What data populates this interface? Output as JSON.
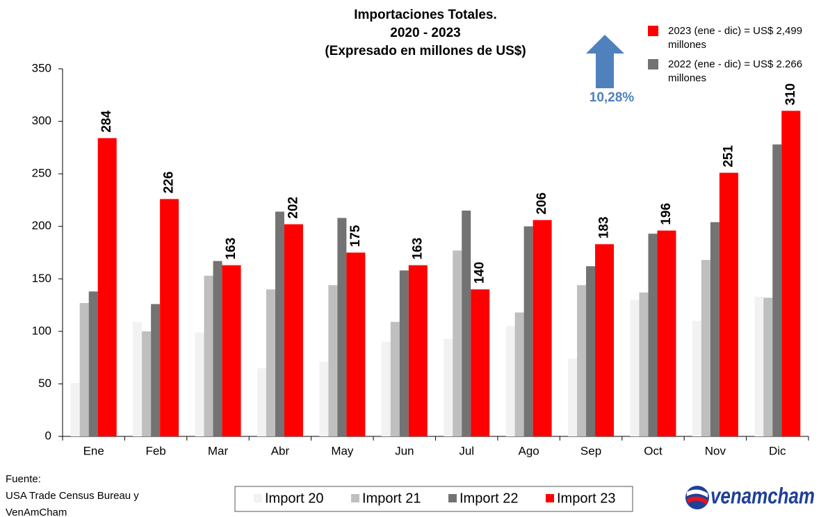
{
  "chart_data": {
    "type": "bar",
    "title": [
      "Importaciones Totales.",
      "2020 - 2023",
      "(Expresado en millones de US$)"
    ],
    "categories": [
      "Ene",
      "Feb",
      "Mar",
      "Abr",
      "May",
      "Jun",
      "Jul",
      "Ago",
      "Sep",
      "Oct",
      "Nov",
      "Dic"
    ],
    "series": [
      {
        "name": "Import 20",
        "color": "#f2f2f2",
        "values": [
          51,
          109,
          99,
          65,
          71,
          90,
          93,
          105,
          74,
          130,
          110,
          133
        ]
      },
      {
        "name": "Import 21",
        "color": "#bfbfbf",
        "values": [
          127,
          100,
          153,
          140,
          144,
          109,
          177,
          118,
          144,
          137,
          168,
          132
        ]
      },
      {
        "name": "Import 22",
        "color": "#737373",
        "values": [
          138,
          126,
          167,
          214,
          208,
          158,
          215,
          200,
          162,
          193,
          204,
          278
        ]
      },
      {
        "name": "Import 23",
        "color": "#ff0000",
        "values": [
          284,
          226,
          163,
          202,
          175,
          163,
          140,
          206,
          183,
          196,
          251,
          310
        ]
      }
    ],
    "labeled_series": 3,
    "ylim": [
      0,
      350
    ],
    "yticks": [
      0,
      50,
      100,
      150,
      200,
      250,
      300,
      350
    ],
    "annotations": {
      "totals": [
        {
          "text": [
            "2023 (ene - dic) = US$ 2,499",
            "millones"
          ],
          "color": "#ff0000"
        },
        {
          "text": [
            "2022 (ene - dic) = US$ 2.266",
            "millones"
          ],
          "color": "#737373"
        }
      ],
      "change": "10,28%",
      "source": [
        "Fuente:",
        "USA Trade Census Bureau y",
        "VenAmCham"
      ],
      "logo": "venamcham"
    },
    "legend": "bottom"
  }
}
